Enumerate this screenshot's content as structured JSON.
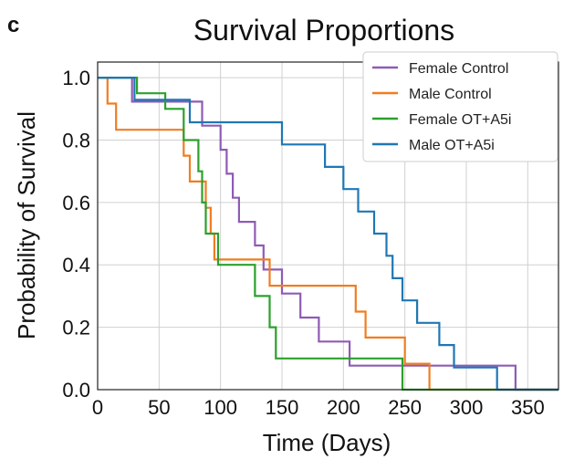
{
  "panel_letter": "c",
  "chart_data": {
    "type": "line",
    "title": "Survival Proportions",
    "xlabel": "Time (Days)",
    "ylabel": "Probability of Survival",
    "xlim": [
      0,
      375
    ],
    "ylim": [
      0,
      1.05
    ],
    "xticks": [
      0,
      50,
      100,
      150,
      200,
      250,
      300,
      350
    ],
    "yticks": [
      0.0,
      0.2,
      0.4,
      0.6,
      0.8,
      1.0
    ],
    "xtick_labels": [
      "0",
      "50",
      "100",
      "150",
      "200",
      "250",
      "300",
      "350"
    ],
    "ytick_labels": [
      "0.0",
      "0.2",
      "0.4",
      "0.6",
      "0.8",
      "1.0"
    ],
    "grid": true,
    "legend_position": "top-right",
    "series": [
      {
        "name": "Female Control",
        "color": "#8e5bb5",
        "steps": [
          [
            0,
            1.0
          ],
          [
            28,
            1.0
          ],
          [
            28,
            0.923
          ],
          [
            85,
            0.923
          ],
          [
            85,
            0.846
          ],
          [
            100,
            0.846
          ],
          [
            100,
            0.769
          ],
          [
            105,
            0.769
          ],
          [
            105,
            0.692
          ],
          [
            110,
            0.692
          ],
          [
            110,
            0.615
          ],
          [
            115,
            0.615
          ],
          [
            115,
            0.538
          ],
          [
            128,
            0.538
          ],
          [
            128,
            0.462
          ],
          [
            135,
            0.462
          ],
          [
            135,
            0.385
          ],
          [
            150,
            0.385
          ],
          [
            150,
            0.308
          ],
          [
            165,
            0.308
          ],
          [
            165,
            0.231
          ],
          [
            180,
            0.231
          ],
          [
            180,
            0.154
          ],
          [
            205,
            0.154
          ],
          [
            205,
            0.077
          ],
          [
            340,
            0.077
          ],
          [
            340,
            0.0
          ],
          [
            375,
            0.0
          ]
        ]
      },
      {
        "name": "Male Control",
        "color": "#f07d22",
        "steps": [
          [
            0,
            1.0
          ],
          [
            8,
            1.0
          ],
          [
            8,
            0.917
          ],
          [
            15,
            0.917
          ],
          [
            15,
            0.833
          ],
          [
            70,
            0.833
          ],
          [
            70,
            0.75
          ],
          [
            75,
            0.75
          ],
          [
            75,
            0.667
          ],
          [
            88,
            0.667
          ],
          [
            88,
            0.583
          ],
          [
            92,
            0.583
          ],
          [
            92,
            0.5
          ],
          [
            95,
            0.5
          ],
          [
            95,
            0.417
          ],
          [
            140,
            0.417
          ],
          [
            140,
            0.333
          ],
          [
            210,
            0.333
          ],
          [
            210,
            0.25
          ],
          [
            218,
            0.25
          ],
          [
            218,
            0.167
          ],
          [
            250,
            0.167
          ],
          [
            250,
            0.083
          ],
          [
            270,
            0.083
          ],
          [
            270,
            0.0
          ],
          [
            375,
            0.0
          ]
        ]
      },
      {
        "name": "Female OT+A5i",
        "color": "#2ca02c",
        "steps": [
          [
            0,
            1.0
          ],
          [
            32,
            1.0
          ],
          [
            32,
            0.95
          ],
          [
            55,
            0.95
          ],
          [
            55,
            0.9
          ],
          [
            70,
            0.9
          ],
          [
            70,
            0.8
          ],
          [
            82,
            0.8
          ],
          [
            82,
            0.7
          ],
          [
            85,
            0.7
          ],
          [
            85,
            0.6
          ],
          [
            88,
            0.6
          ],
          [
            88,
            0.5
          ],
          [
            98,
            0.5
          ],
          [
            98,
            0.4
          ],
          [
            128,
            0.4
          ],
          [
            128,
            0.3
          ],
          [
            140,
            0.3
          ],
          [
            140,
            0.2
          ],
          [
            145,
            0.2
          ],
          [
            145,
            0.1
          ],
          [
            248,
            0.1
          ],
          [
            248,
            0.0
          ],
          [
            375,
            0.0
          ]
        ]
      },
      {
        "name": "Male OT+A5i",
        "color": "#1f77b4",
        "steps": [
          [
            0,
            1.0
          ],
          [
            30,
            1.0
          ],
          [
            30,
            0.929
          ],
          [
            75,
            0.929
          ],
          [
            75,
            0.857
          ],
          [
            150,
            0.857
          ],
          [
            150,
            0.786
          ],
          [
            185,
            0.786
          ],
          [
            185,
            0.714
          ],
          [
            200,
            0.714
          ],
          [
            200,
            0.643
          ],
          [
            212,
            0.643
          ],
          [
            212,
            0.571
          ],
          [
            225,
            0.571
          ],
          [
            225,
            0.5
          ],
          [
            235,
            0.5
          ],
          [
            235,
            0.429
          ],
          [
            240,
            0.429
          ],
          [
            240,
            0.357
          ],
          [
            248,
            0.357
          ],
          [
            248,
            0.286
          ],
          [
            260,
            0.286
          ],
          [
            260,
            0.214
          ],
          [
            278,
            0.214
          ],
          [
            278,
            0.143
          ],
          [
            290,
            0.143
          ],
          [
            290,
            0.071
          ],
          [
            325,
            0.071
          ],
          [
            325,
            0.0
          ],
          [
            375,
            0.0
          ]
        ]
      }
    ]
  }
}
